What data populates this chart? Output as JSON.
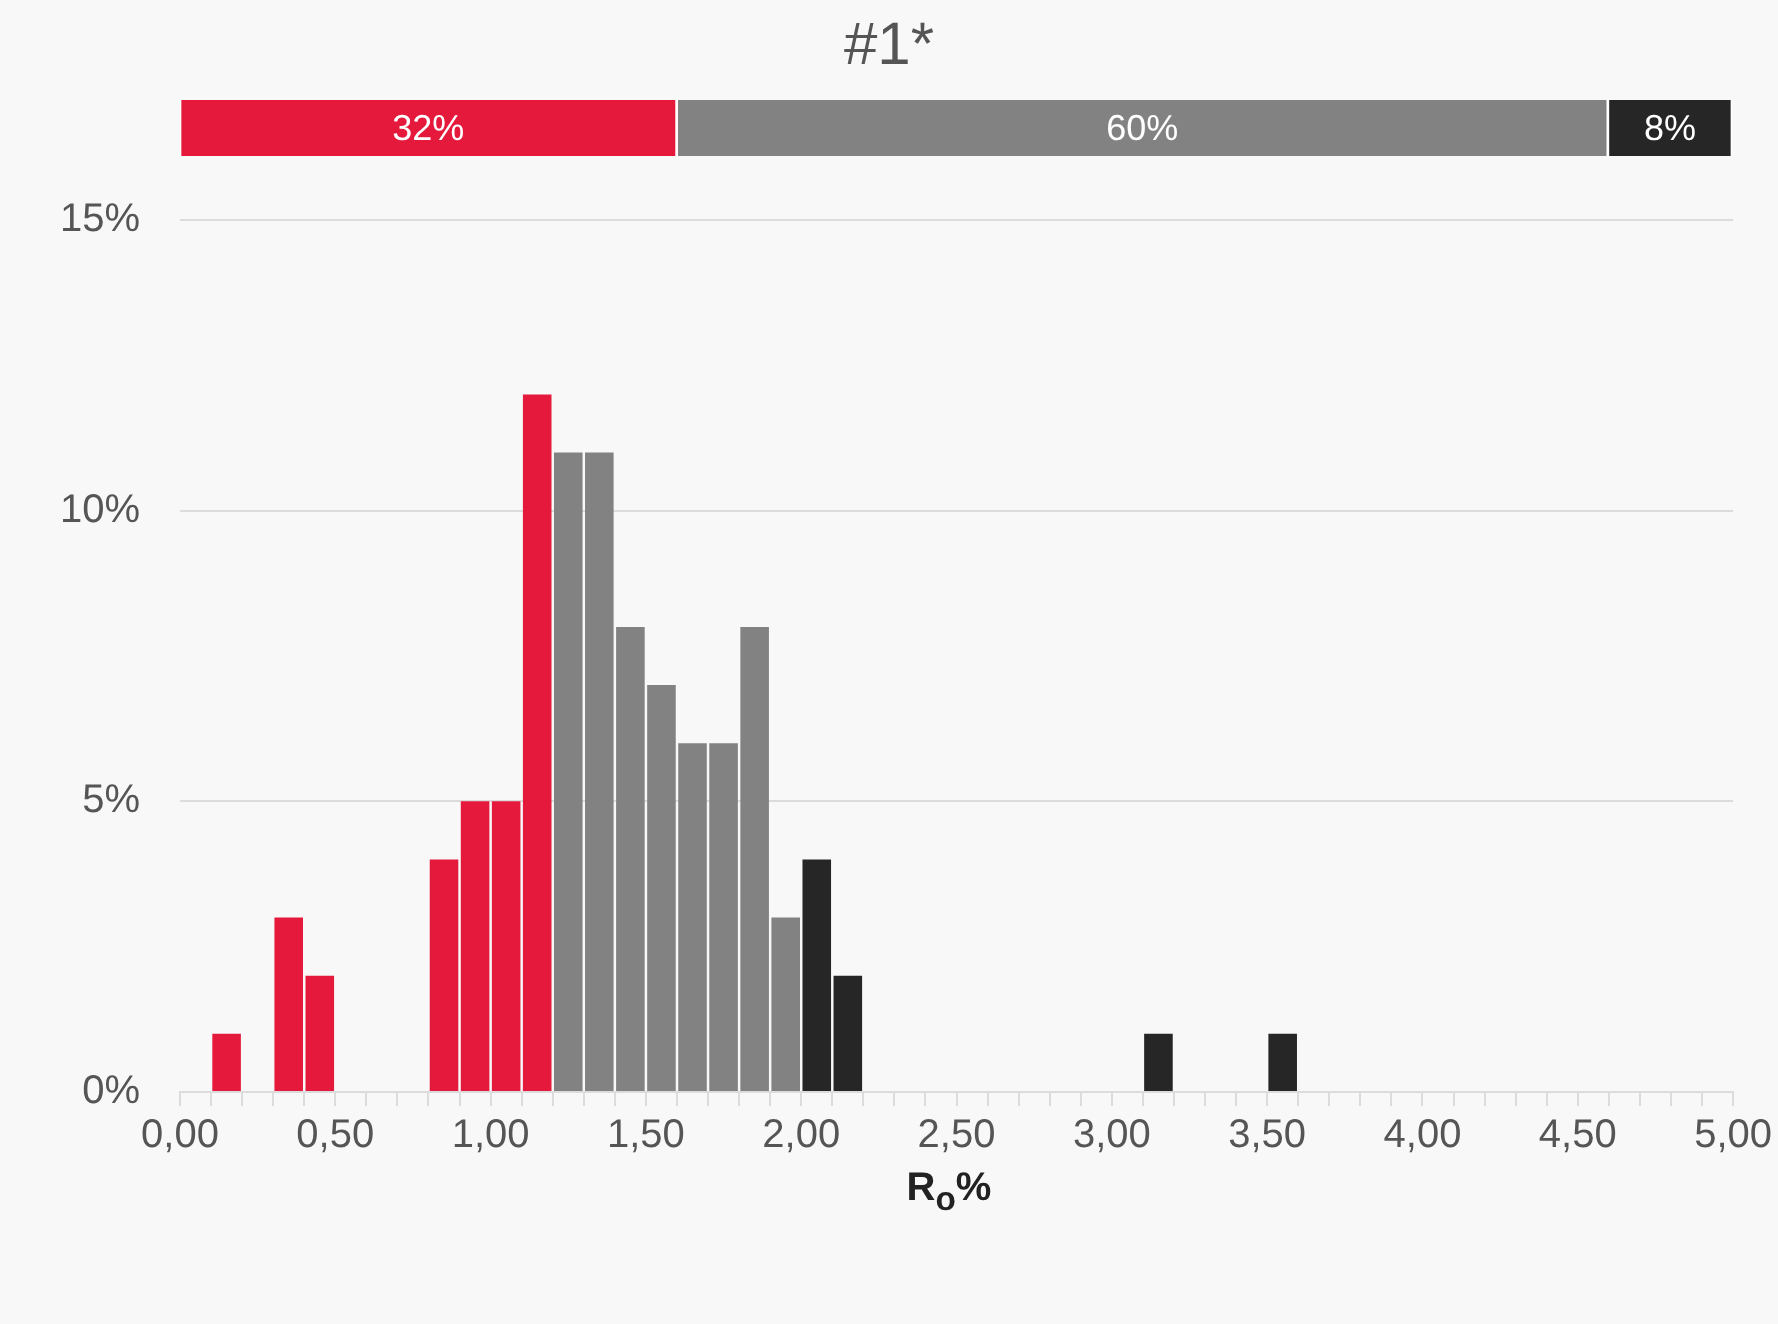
{
  "chart_data": [
    {
      "type": "bar",
      "title": "#1*",
      "orientation": "horizontal",
      "stacked": true,
      "categories": [
        null
      ],
      "data_labels": true,
      "series": [
        {
          "color": "#e4193b",
          "values": [
            32
          ],
          "value_labels": [
            "32%"
          ]
        },
        {
          "color": "#828282",
          "values": [
            60
          ],
          "value_labels": [
            "60%"
          ]
        },
        {
          "color": "#262626",
          "values": [
            8
          ],
          "value_labels": [
            "8%"
          ]
        }
      ]
    },
    {
      "type": "histogram",
      "xlabel": "R$_{o}$%",
      "grid": "y",
      "legend": false,
      "bins": [
        0,
        0.1,
        0.2,
        0.3,
        0.4,
        0.5,
        0.6,
        0.7,
        0.8,
        0.9,
        1.0,
        1.1,
        1.2,
        1.3,
        1.4,
        1.5,
        1.6,
        1.7,
        1.8,
        1.9,
        2.0,
        2.1,
        2.2,
        2.3,
        2.4,
        2.5,
        2.6,
        2.7,
        2.8,
        2.9,
        3.0,
        3.1,
        3.2,
        3.3,
        3.4,
        3.5,
        3.6,
        3.7,
        3.8,
        3.9,
        4.0,
        4.1,
        4.2,
        4.3,
        4.4,
        4.5,
        4.6,
        4.7,
        4.8,
        4.9,
        5.0
      ],
      "values": [
        0,
        1,
        0,
        3,
        2,
        0,
        0,
        0,
        4,
        5,
        5,
        12,
        11,
        11,
        8,
        7,
        6,
        6,
        8,
        3,
        4,
        2,
        0,
        0,
        0,
        0,
        0,
        0,
        0,
        0,
        0,
        1,
        0,
        0,
        0,
        1,
        0,
        0,
        0,
        0,
        0,
        0,
        0,
        0,
        0,
        0,
        0,
        0,
        0,
        0
      ],
      "colors": [
        "#e4193b",
        "#e4193b",
        "#e4193b",
        "#e4193b",
        "#e4193b",
        "#e4193b",
        "#e4193b",
        "#e4193b",
        "#e4193b",
        "#e4193b",
        "#e4193b",
        "#e4193b",
        "#828282",
        "#828282",
        "#828282",
        "#828282",
        "#828282",
        "#828282",
        "#828282",
        "#828282",
        "#262626",
        "#262626",
        "#262626",
        "#262626",
        "#262626",
        "#262626",
        "#262626",
        "#262626",
        "#262626",
        "#262626",
        "#262626",
        "#262626",
        "#262626",
        "#262626",
        "#262626",
        "#262626",
        "#262626",
        "#262626",
        "#262626",
        "#262626",
        "#262626",
        "#262626",
        "#262626",
        "#262626",
        "#262626",
        "#262626",
        "#262626",
        "#262626",
        "#262626",
        "#262626"
      ],
      "xlim": [
        0,
        5.0
      ],
      "xticks": [
        {
          "value": 0,
          "label": "0,00"
        },
        {
          "value": 0.1,
          "label": null
        },
        {
          "value": 0.2,
          "label": null
        },
        {
          "value": 0.3,
          "label": null
        },
        {
          "value": 0.4,
          "label": null
        },
        {
          "value": 0.5,
          "label": "0,50"
        },
        {
          "value": 0.6,
          "label": null
        },
        {
          "value": 0.7,
          "label": null
        },
        {
          "value": 0.8,
          "label": null
        },
        {
          "value": 0.9,
          "label": null
        },
        {
          "value": 1.0,
          "label": "1,00"
        },
        {
          "value": 1.1,
          "label": null
        },
        {
          "value": 1.2,
          "label": null
        },
        {
          "value": 1.3,
          "label": null
        },
        {
          "value": 1.4,
          "label": null
        },
        {
          "value": 1.5,
          "label": "1,50"
        },
        {
          "value": 1.6,
          "label": null
        },
        {
          "value": 1.7,
          "label": null
        },
        {
          "value": 1.8,
          "label": null
        },
        {
          "value": 1.9,
          "label": null
        },
        {
          "value": 2.0,
          "label": "2,00"
        },
        {
          "value": 2.1,
          "label": null
        },
        {
          "value": 2.2,
          "label": null
        },
        {
          "value": 2.3,
          "label": null
        },
        {
          "value": 2.4,
          "label": null
        },
        {
          "value": 2.5,
          "label": "2,50"
        },
        {
          "value": 2.6,
          "label": null
        },
        {
          "value": 2.7,
          "label": null
        },
        {
          "value": 2.8,
          "label": null
        },
        {
          "value": 2.9,
          "label": null
        },
        {
          "value": 3.0,
          "label": "3,00"
        },
        {
          "value": 3.1,
          "label": null
        },
        {
          "value": 3.2,
          "label": null
        },
        {
          "value": 3.3,
          "label": null
        },
        {
          "value": 3.4,
          "label": null
        },
        {
          "value": 3.5,
          "label": "3,50"
        },
        {
          "value": 3.6,
          "label": null
        },
        {
          "value": 3.7,
          "label": null
        },
        {
          "value": 3.8,
          "label": null
        },
        {
          "value": 3.9,
          "label": null
        },
        {
          "value": 4.0,
          "label": "4,00"
        },
        {
          "value": 4.1,
          "label": null
        },
        {
          "value": 4.2,
          "label": null
        },
        {
          "value": 4.3,
          "label": null
        },
        {
          "value": 4.4,
          "label": null
        },
        {
          "value": 4.5,
          "label": "4,50"
        },
        {
          "value": 4.6,
          "label": null
        },
        {
          "value": 4.7,
          "label": null
        },
        {
          "value": 4.8,
          "label": null
        },
        {
          "value": 4.9,
          "label": null
        },
        {
          "value": 5.0,
          "label": "5,00"
        }
      ],
      "ylim": [
        0,
        15
      ],
      "yticks": [
        {
          "value": 0,
          "label": "0%"
        },
        {
          "value": 5,
          "label": "5%"
        },
        {
          "value": 10,
          "label": "10%"
        },
        {
          "value": 15,
          "label": "15%"
        }
      ]
    }
  ]
}
